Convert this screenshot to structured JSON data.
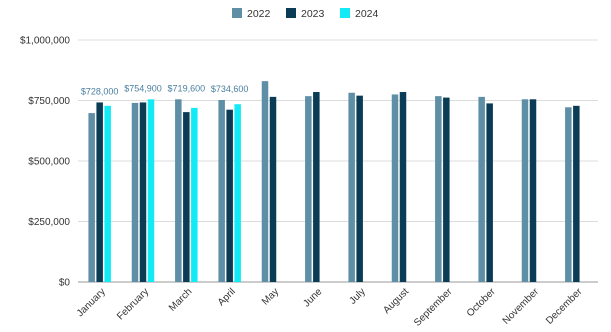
{
  "chart_data": {
    "type": "bar",
    "title": "",
    "xlabel": "",
    "ylabel": "",
    "categories": [
      "January",
      "February",
      "March",
      "April",
      "May",
      "June",
      "July",
      "August",
      "September",
      "October",
      "November",
      "December"
    ],
    "series": [
      {
        "name": "2022",
        "color": "#5e8fa6",
        "values": [
          698000,
          740000,
          755000,
          752000,
          830000,
          768000,
          782000,
          775000,
          768000,
          765000,
          755000,
          722000
        ]
      },
      {
        "name": "2023",
        "color": "#0b3c55",
        "values": [
          742000,
          742000,
          702000,
          712000,
          765000,
          785000,
          770000,
          785000,
          762000,
          738000,
          755000,
          728000
        ]
      },
      {
        "name": "2024",
        "color": "#12eaf5",
        "values": [
          728000,
          754900,
          719600,
          734600,
          null,
          null,
          null,
          null,
          null,
          null,
          null,
          null
        ]
      }
    ],
    "data_labels": [
      {
        "category": "January",
        "series": "2024",
        "text": "$728,000"
      },
      {
        "category": "February",
        "series": "2024",
        "text": "$754,900"
      },
      {
        "category": "March",
        "series": "2024",
        "text": "$719,600"
      },
      {
        "category": "April",
        "series": "2024",
        "text": "$734,600"
      }
    ],
    "yticks": [
      0,
      250000,
      500000,
      750000,
      1000000
    ],
    "ytick_labels": [
      "$0",
      "$250,000",
      "$500,000",
      "$750,000",
      "$1,000,000"
    ],
    "ylim": [
      0,
      1000000
    ],
    "grid": true,
    "legend": {
      "position": "top-center"
    }
  }
}
